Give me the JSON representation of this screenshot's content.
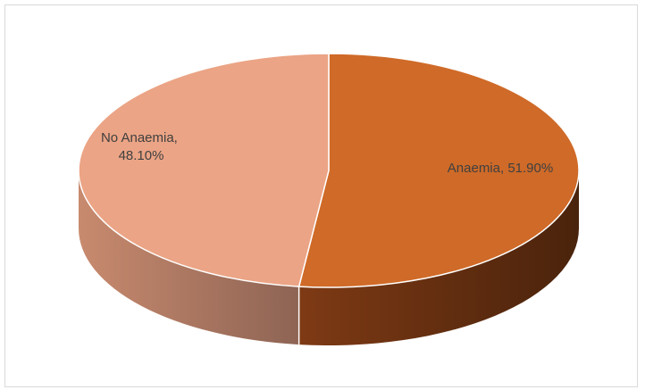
{
  "chart_data": {
    "type": "pie",
    "style": "3d",
    "title": "",
    "legend": "none",
    "slices": [
      {
        "name": "Anaemia",
        "label": "Anaemia, 51.90%",
        "value": 51.9,
        "color": "#cf6a28",
        "side_color": "#5a2a10"
      },
      {
        "name": "No Anaemia",
        "label_lines": [
          "No Anaemia,",
          "48.10%"
        ],
        "value": 48.1,
        "color": "#eba485",
        "side_color": "#a97762"
      }
    ]
  }
}
